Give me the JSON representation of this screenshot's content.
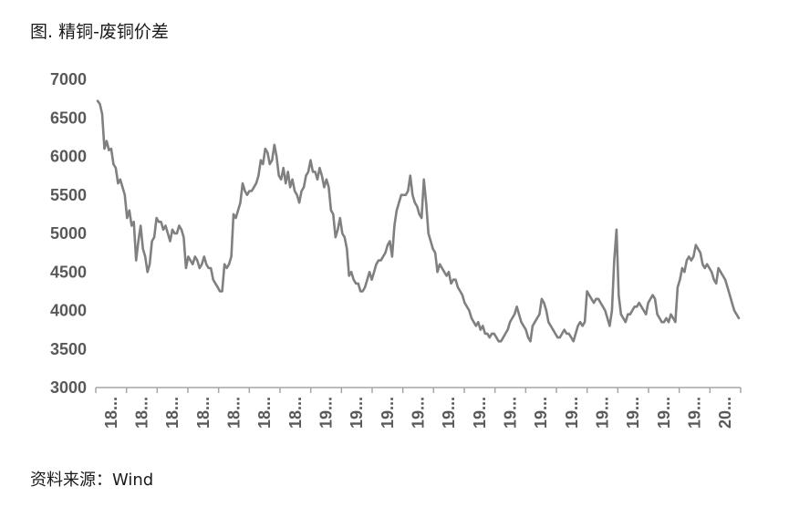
{
  "header": {
    "title": "图. 精铜-废铜价差"
  },
  "footer": {
    "source": "资料来源：Wind"
  },
  "colors": {
    "line": "#808080",
    "axis": "#a6a6a6",
    "text": "#595959"
  },
  "chart_data": {
    "type": "line",
    "title": "图. 精铜-废铜价差",
    "xlabel": "",
    "ylabel": "",
    "ylim": [
      3000,
      7000
    ],
    "yticks": [
      "3000",
      "3500",
      "4000",
      "4500",
      "5000",
      "5500",
      "6000",
      "6500",
      "7000"
    ],
    "xticks": [
      "18...",
      "18...",
      "18...",
      "18...",
      "18...",
      "18...",
      "18...",
      "19...",
      "19...",
      "19...",
      "19...",
      "19...",
      "19...",
      "19...",
      "19...",
      "19...",
      "19...",
      "19...",
      "19...",
      "19...",
      "20..."
    ],
    "grid": false,
    "legend": "none",
    "series": [
      {
        "values": [
          6720,
          6680,
          6550,
          6100,
          6200,
          6080,
          6100,
          5900,
          5850,
          5650,
          5700,
          5600,
          5500,
          5200,
          5300,
          5100,
          5150,
          4650,
          4900,
          5100,
          4800,
          4700,
          4500,
          4600,
          4900,
          4950,
          5200,
          5150,
          5150,
          5050,
          5100,
          5000,
          4900,
          5050,
          5000,
          5000,
          5100,
          5050,
          4950,
          4550,
          4700,
          4650,
          4600,
          4700,
          4650,
          4550,
          4600,
          4700,
          4600,
          4550,
          4550,
          4400,
          4350,
          4300,
          4250,
          4250,
          4600,
          4550,
          4600,
          4700,
          5250,
          5200,
          5300,
          5400,
          5650,
          5550,
          5500,
          5550,
          5550,
          5600,
          5650,
          5750,
          5950,
          5900,
          6100,
          6050,
          5900,
          5950,
          6150,
          6000,
          5750,
          5700,
          5850,
          5650,
          5800,
          5600,
          5700,
          5550,
          5500,
          5400,
          5550,
          5600,
          5750,
          5800,
          5950,
          5800,
          5800,
          5700,
          5850,
          5750,
          5600,
          5700,
          5600,
          5300,
          5250,
          4950,
          5050,
          5200,
          5000,
          4950,
          4800,
          4450,
          4500,
          4400,
          4350,
          4350,
          4250,
          4250,
          4300,
          4400,
          4500,
          4400,
          4500,
          4600,
          4650,
          4650,
          4700,
          4750,
          4850,
          4900,
          4700,
          5100,
          5300,
          5400,
          5500,
          5500,
          5500,
          5550,
          5750,
          5500,
          5400,
          5350,
          5250,
          5200,
          5700,
          5400,
          5000,
          4900,
          4800,
          4750,
          4500,
          4600,
          4550,
          4500,
          4450,
          4500,
          4350,
          4400,
          4400,
          4300,
          4250,
          4200,
          4100,
          4050,
          4000,
          3900,
          3850,
          3800,
          3850,
          3750,
          3800,
          3700,
          3700,
          3650,
          3700,
          3700,
          3650,
          3600,
          3600,
          3650,
          3700,
          3750,
          3850,
          3900,
          3950,
          4050,
          3950,
          3850,
          3800,
          3750,
          3650,
          3600,
          3800,
          3850,
          3900,
          3950,
          4150,
          4100,
          4000,
          3850,
          3800,
          3750,
          3700,
          3650,
          3650,
          3700,
          3750,
          3700,
          3700,
          3650,
          3600,
          3700,
          3800,
          3850,
          3800,
          3850,
          4250,
          4200,
          4150,
          4100,
          4150,
          4150,
          4100,
          4050,
          4000,
          3900,
          3800,
          4000,
          4650,
          5050,
          4200,
          3950,
          3900,
          3850,
          3950,
          3950,
          4000,
          4050,
          4050,
          4100,
          4050,
          4000,
          3950,
          4100,
          4150,
          4200,
          4150,
          3950,
          3900,
          3850,
          3850,
          3900,
          3850,
          3950,
          3900,
          3850,
          4300,
          4400,
          4550,
          4500,
          4650,
          4700,
          4650,
          4700,
          4850,
          4800,
          4750,
          4600,
          4550,
          4600,
          4550,
          4500,
          4400,
          4350,
          4550,
          4500,
          4450,
          4400,
          4300,
          4200,
          4100,
          4000,
          3950,
          3900
        ]
      }
    ]
  }
}
